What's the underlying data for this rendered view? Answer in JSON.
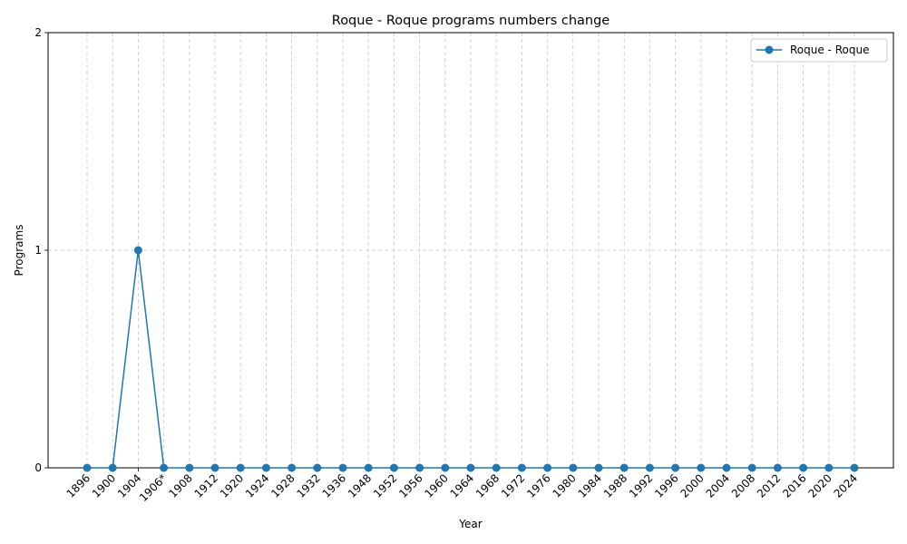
{
  "chart_data": {
    "type": "line",
    "title": "Roque - Roque programs numbers change",
    "xlabel": "Year",
    "ylabel": "Programs",
    "categories": [
      "1896",
      "1900",
      "1904",
      "1906*",
      "1908",
      "1912",
      "1920",
      "1924",
      "1928",
      "1932",
      "1936",
      "1948",
      "1952",
      "1956",
      "1960",
      "1964",
      "1968",
      "1972",
      "1976",
      "1980",
      "1984",
      "1988",
      "1992",
      "1996",
      "2000",
      "2004",
      "2008",
      "2012",
      "2016",
      "2020",
      "2024"
    ],
    "series": [
      {
        "name": "Roque - Roque",
        "color": "#1f77b4",
        "marker": "circle",
        "values": [
          0,
          0,
          1,
          0,
          0,
          0,
          0,
          0,
          0,
          0,
          0,
          0,
          0,
          0,
          0,
          0,
          0,
          0,
          0,
          0,
          0,
          0,
          0,
          0,
          0,
          0,
          0,
          0,
          0,
          0,
          0
        ]
      }
    ],
    "yticks": [
      0,
      1,
      2
    ],
    "ylim": [
      0,
      2
    ],
    "grid": true,
    "legend_position": "top-right"
  }
}
